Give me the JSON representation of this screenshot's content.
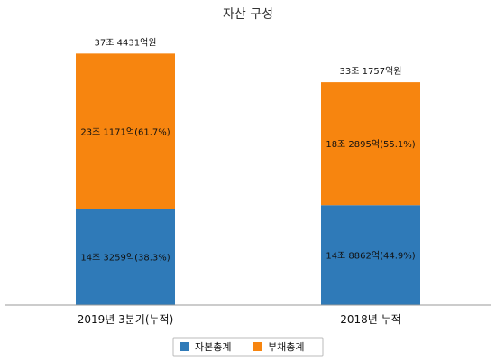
{
  "chart_data": {
    "type": "bar",
    "stacked": true,
    "title": "자산 구성",
    "categories": [
      "2019년 3분기(누적)",
      "2018년 누적"
    ],
    "unit": "억원",
    "series": [
      {
        "name": "자본총계",
        "color": "#2f7ab8",
        "values": [
          143259,
          148862
        ],
        "labels": [
          "14조 3259억(38.3%)",
          "14조 8862억(44.9%)"
        ]
      },
      {
        "name": "부채총계",
        "color": "#f7850f",
        "values": [
          231171,
          182895
        ],
        "labels": [
          "23조 1171억(61.7%)",
          "18조 2895억(55.1%)"
        ]
      }
    ],
    "totals": [
      374431,
      331757
    ],
    "total_labels": [
      "37조 4431억원",
      "33조 1757억원"
    ],
    "ylim": [
      0,
      430000
    ],
    "grid": false,
    "legend_position": "bottom"
  }
}
